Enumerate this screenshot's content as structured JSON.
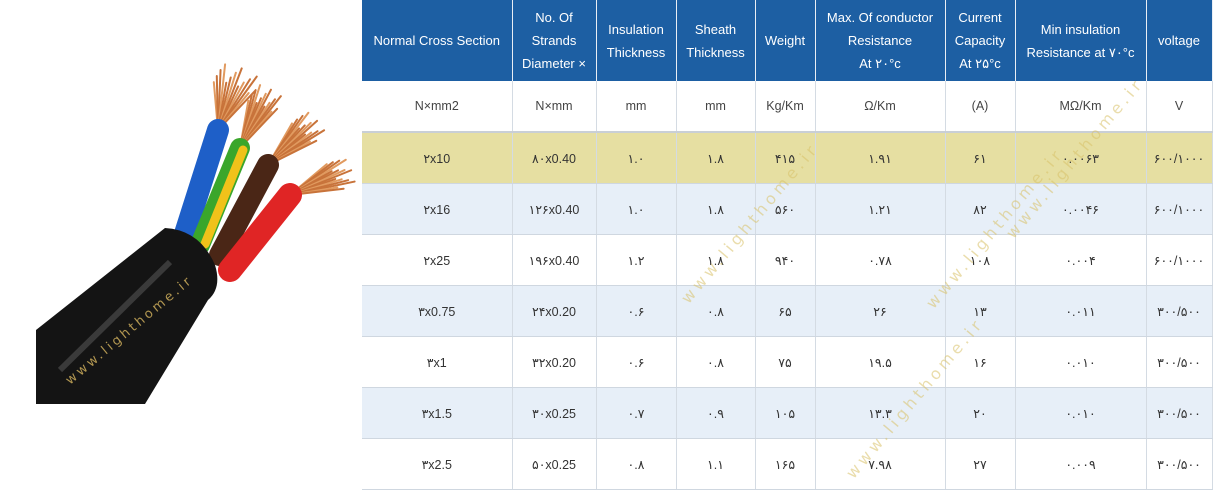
{
  "watermark": "www.lighthome.ir",
  "photo": {
    "wire_colors": [
      "#1e5fc8",
      "#3aa62b",
      "#f0c21a",
      "#4a2616",
      "#e02525"
    ],
    "jacket_color": "#141414",
    "copper_color": "#c8733a"
  },
  "table": {
    "headers": [
      {
        "lines": [
          "Normal Cross Section"
        ]
      },
      {
        "lines": [
          "No. Of",
          "Strands",
          "Diameter ×"
        ]
      },
      {
        "lines": [
          "Insulation",
          "Thickness"
        ]
      },
      {
        "lines": [
          "Sheath",
          "Thickness"
        ]
      },
      {
        "lines": [
          "Weight"
        ]
      },
      {
        "lines": [
          "Max. Of conductor",
          "Resistance",
          "At ۲۰°c"
        ]
      },
      {
        "lines": [
          "Current",
          "Capacity",
          "At ۲۵°c"
        ]
      },
      {
        "lines": [
          "Min insulation",
          "Resistance at ۷۰°c"
        ]
      },
      {
        "lines": [
          "voltage"
        ]
      }
    ],
    "units": [
      "N×mm2",
      "N×mm",
      "mm",
      "mm",
      "Kg/Km",
      "Ω/Km",
      "(A)",
      "MΩ/Km",
      "V"
    ],
    "rows": [
      {
        "style": "hl",
        "cells": [
          "۲x10",
          "۸۰x0.40",
          "۱.۰",
          "۱.۸",
          "۴۱۵",
          "۱.۹۱",
          "۶۱",
          "۰.۰۰۶۳",
          "۶۰۰/۱۰۰۰"
        ]
      },
      {
        "style": "blue",
        "cells": [
          "۲x16",
          "۱۲۶x0.40",
          "۱.۰",
          "۱.۸",
          "۵۶۰",
          "۱.۲۱",
          "۸۲",
          "۰.۰۰۴۶",
          "۶۰۰/۱۰۰۰"
        ]
      },
      {
        "style": "white",
        "cells": [
          "۲x25",
          "۱۹۶x0.40",
          "۱.۲",
          "۱.۸",
          "۹۴۰",
          "۰.۷۸",
          "۱۰۸",
          "۰.۰۰۴",
          "۶۰۰/۱۰۰۰"
        ]
      },
      {
        "style": "blue",
        "cells": [
          "۳x0.75",
          "۲۴x0.20",
          "۰.۶",
          "۰.۸",
          "۶۵",
          "۲۶",
          "۱۳",
          "۰.۰۱۱",
          "۳۰۰/۵۰۰"
        ]
      },
      {
        "style": "white",
        "cells": [
          "۳x1",
          "۳۲x0.20",
          "۰.۶",
          "۰.۸",
          "۷۵",
          "۱۹.۵",
          "۱۶",
          "۰.۰۱۰",
          "۳۰۰/۵۰۰"
        ]
      },
      {
        "style": "blue",
        "cells": [
          "۳x1.5",
          "۳۰x0.25",
          "۰.۷",
          "۰.۹",
          "۱۰۵",
          "۱۳.۳",
          "۲۰",
          "۰.۰۱۰",
          "۳۰۰/۵۰۰"
        ]
      },
      {
        "style": "white",
        "cells": [
          "۳x2.5",
          "۵۰x0.25",
          "۰.۸",
          "۱.۱",
          "۱۶۵",
          "۷.۹۸",
          "۲۷",
          "۰.۰۰۹",
          "۳۰۰/۵۰۰"
        ]
      }
    ]
  }
}
